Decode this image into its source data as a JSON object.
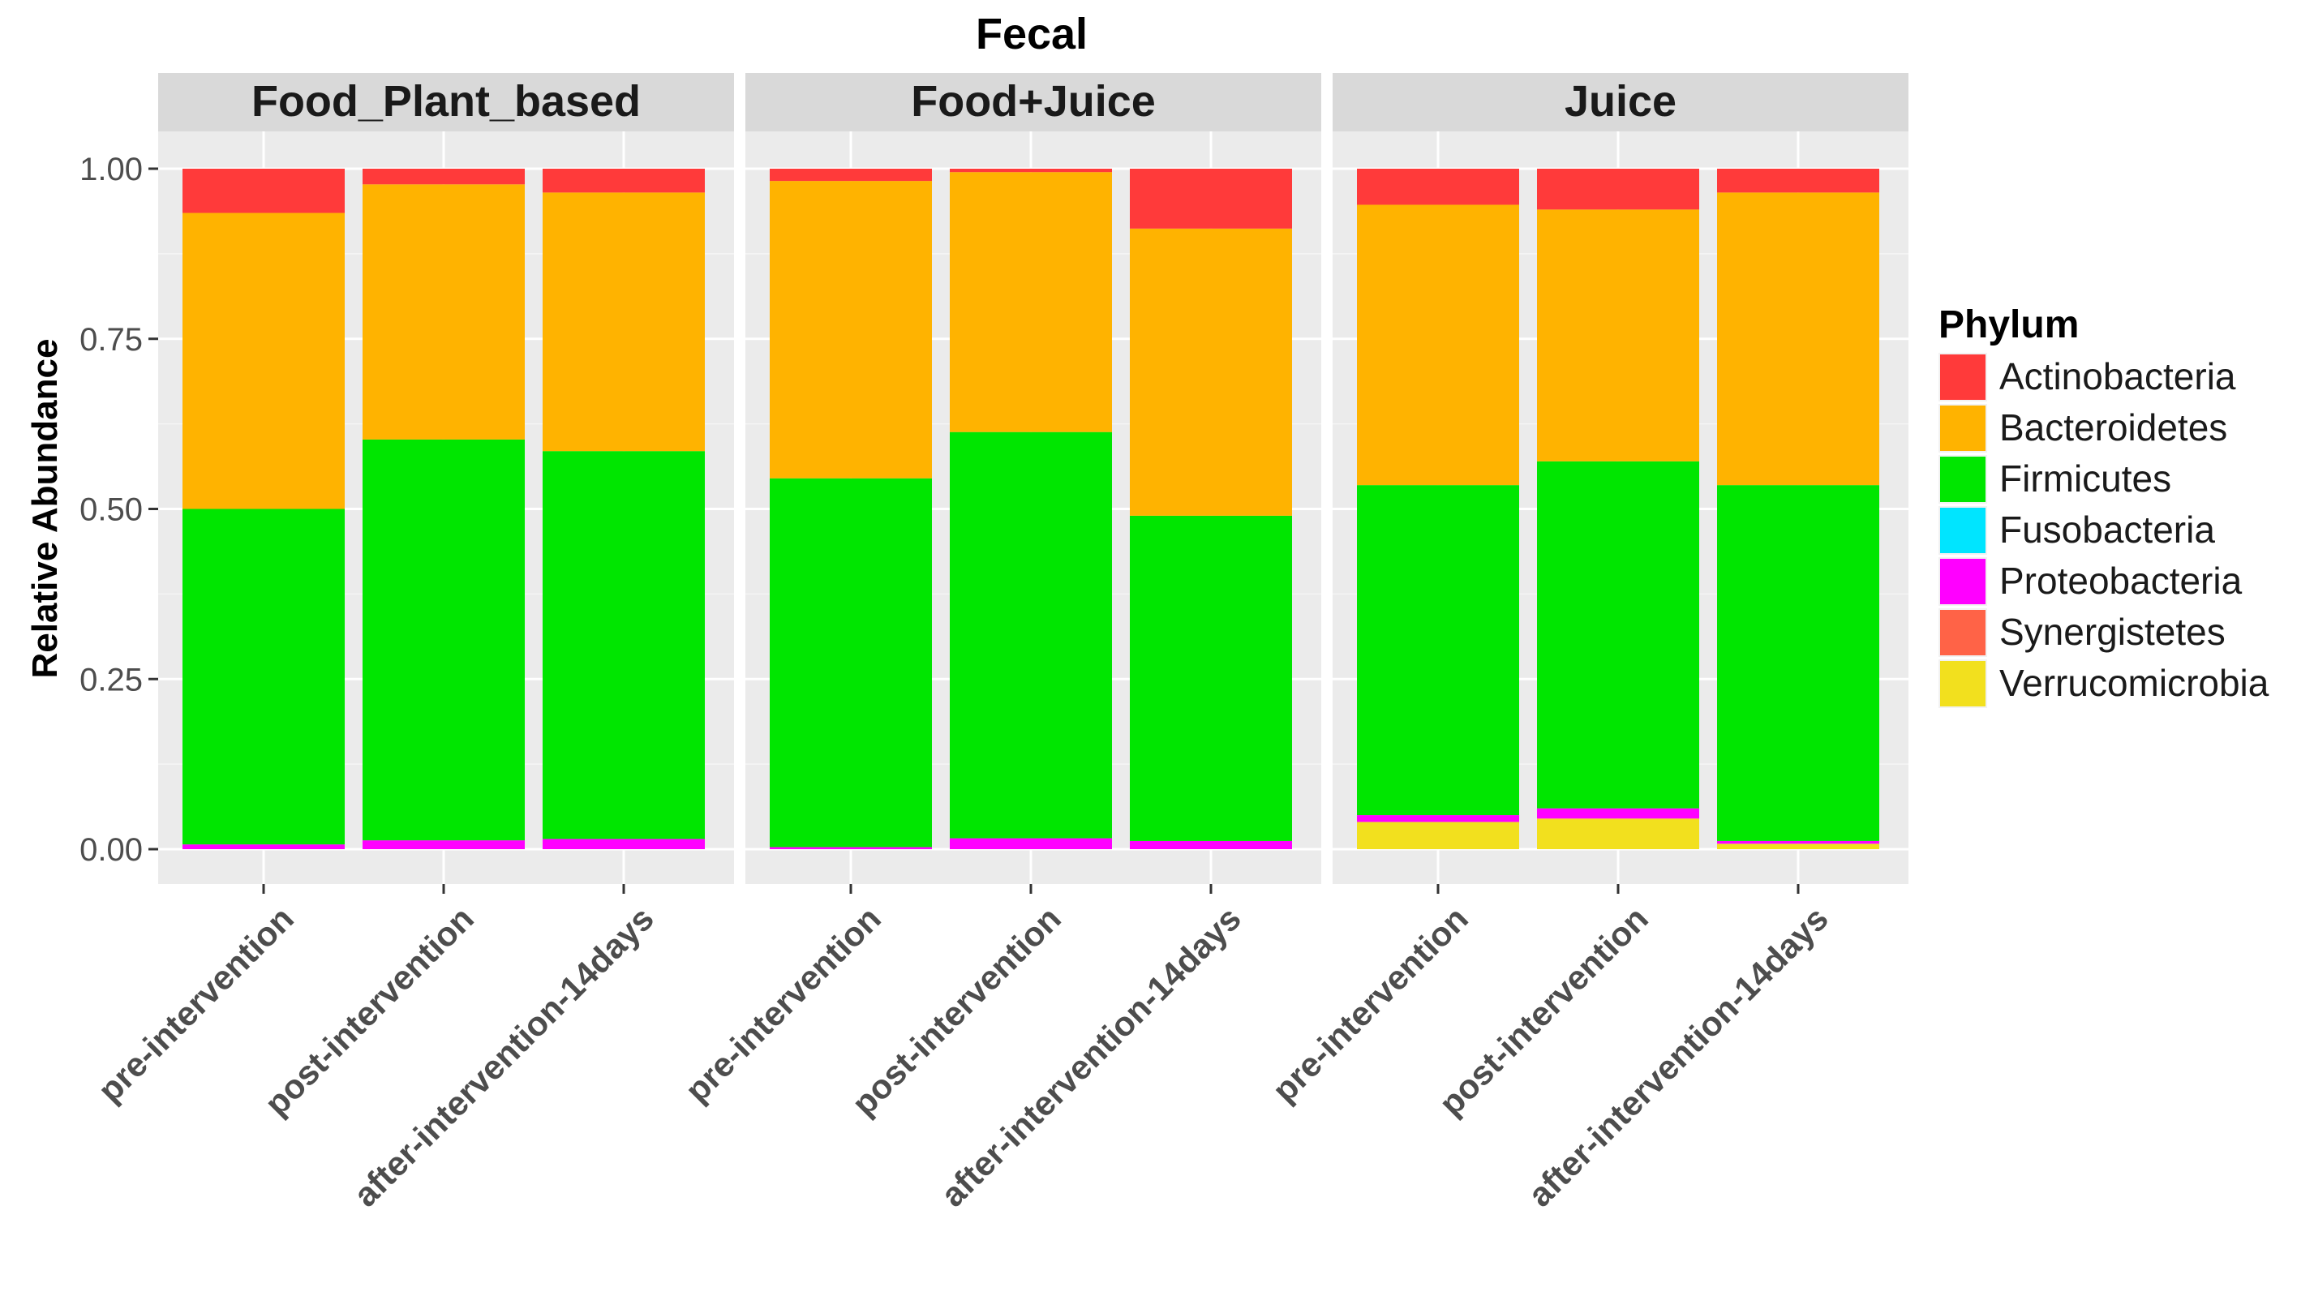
{
  "chart_data": {
    "type": "bar",
    "stacked": true,
    "title": "Fecal",
    "xlabel": "",
    "ylabel": "Relative Abundance",
    "ylim": [
      0,
      1
    ],
    "y_ticks": [
      "0.00",
      "0.25",
      "0.50",
      "0.75",
      "1.00"
    ],
    "y_tick_values": [
      0,
      0.25,
      0.5,
      0.75,
      1
    ],
    "grid": true,
    "categories": [
      "pre-intervention",
      "post-intervention",
      "after-intervention-14days"
    ],
    "legend": {
      "title": "Phylum",
      "position": "right",
      "entries": [
        "Actinobacteria",
        "Bacteroidetes",
        "Firmicutes",
        "Fusobacteria",
        "Proteobacteria",
        "Synergistetes",
        "Verrucomicrobia"
      ]
    },
    "colors": {
      "Actinobacteria": "#ff3a3a",
      "Bacteroidetes": "#ffb300",
      "Firmicutes": "#00e600",
      "Fusobacteria": "#00e5ff",
      "Proteobacteria": "#ff00ff",
      "Synergistetes": "#ff6347",
      "Verrucomicrobia": "#f2e01e"
    },
    "stack_order_bottom_to_top": [
      "Verrucomicrobia",
      "Synergistetes",
      "Proteobacteria",
      "Fusobacteria",
      "Firmicutes",
      "Bacteroidetes",
      "Actinobacteria"
    ],
    "panels": [
      {
        "name": "Food_Plant_based",
        "bars": [
          {
            "category": "pre-intervention",
            "values": {
              "Verrucomicrobia": 0.0,
              "Synergistetes": 0.0,
              "Proteobacteria": 0.007,
              "Fusobacteria": 0.0,
              "Firmicutes": 0.493,
              "Bacteroidetes": 0.435,
              "Actinobacteria": 0.065
            }
          },
          {
            "category": "post-intervention",
            "values": {
              "Verrucomicrobia": 0.0,
              "Synergistetes": 0.0,
              "Proteobacteria": 0.013,
              "Fusobacteria": 0.0,
              "Firmicutes": 0.589,
              "Bacteroidetes": 0.375,
              "Actinobacteria": 0.023
            }
          },
          {
            "category": "after-intervention-14days",
            "values": {
              "Verrucomicrobia": 0.0,
              "Synergistetes": 0.0,
              "Proteobacteria": 0.015,
              "Fusobacteria": 0.0,
              "Firmicutes": 0.57,
              "Bacteroidetes": 0.38,
              "Actinobacteria": 0.035
            }
          }
        ]
      },
      {
        "name": "Food+Juice",
        "bars": [
          {
            "category": "pre-intervention",
            "values": {
              "Verrucomicrobia": 0.0,
              "Synergistetes": 0.0,
              "Proteobacteria": 0.003,
              "Fusobacteria": 0.0,
              "Firmicutes": 0.542,
              "Bacteroidetes": 0.437,
              "Actinobacteria": 0.018
            }
          },
          {
            "category": "post-intervention",
            "values": {
              "Verrucomicrobia": 0.0,
              "Synergistetes": 0.0,
              "Proteobacteria": 0.016,
              "Fusobacteria": 0.0,
              "Firmicutes": 0.597,
              "Bacteroidetes": 0.382,
              "Actinobacteria": 0.005
            }
          },
          {
            "category": "after-intervention-14days",
            "values": {
              "Verrucomicrobia": 0.0,
              "Synergistetes": 0.0,
              "Proteobacteria": 0.012,
              "Fusobacteria": 0.0,
              "Firmicutes": 0.478,
              "Bacteroidetes": 0.422,
              "Actinobacteria": 0.088
            }
          }
        ]
      },
      {
        "name": "Juice",
        "bars": [
          {
            "category": "pre-intervention",
            "values": {
              "Verrucomicrobia": 0.04,
              "Synergistetes": 0.0,
              "Proteobacteria": 0.01,
              "Fusobacteria": 0.0,
              "Firmicutes": 0.485,
              "Bacteroidetes": 0.412,
              "Actinobacteria": 0.053
            }
          },
          {
            "category": "post-intervention",
            "values": {
              "Verrucomicrobia": 0.045,
              "Synergistetes": 0.0,
              "Proteobacteria": 0.015,
              "Fusobacteria": 0.0,
              "Firmicutes": 0.51,
              "Bacteroidetes": 0.37,
              "Actinobacteria": 0.06
            }
          },
          {
            "category": "after-intervention-14days",
            "values": {
              "Verrucomicrobia": 0.008,
              "Synergistetes": 0.0,
              "Proteobacteria": 0.004,
              "Fusobacteria": 0.0,
              "Firmicutes": 0.523,
              "Bacteroidetes": 0.43,
              "Actinobacteria": 0.035
            }
          }
        ]
      }
    ]
  }
}
